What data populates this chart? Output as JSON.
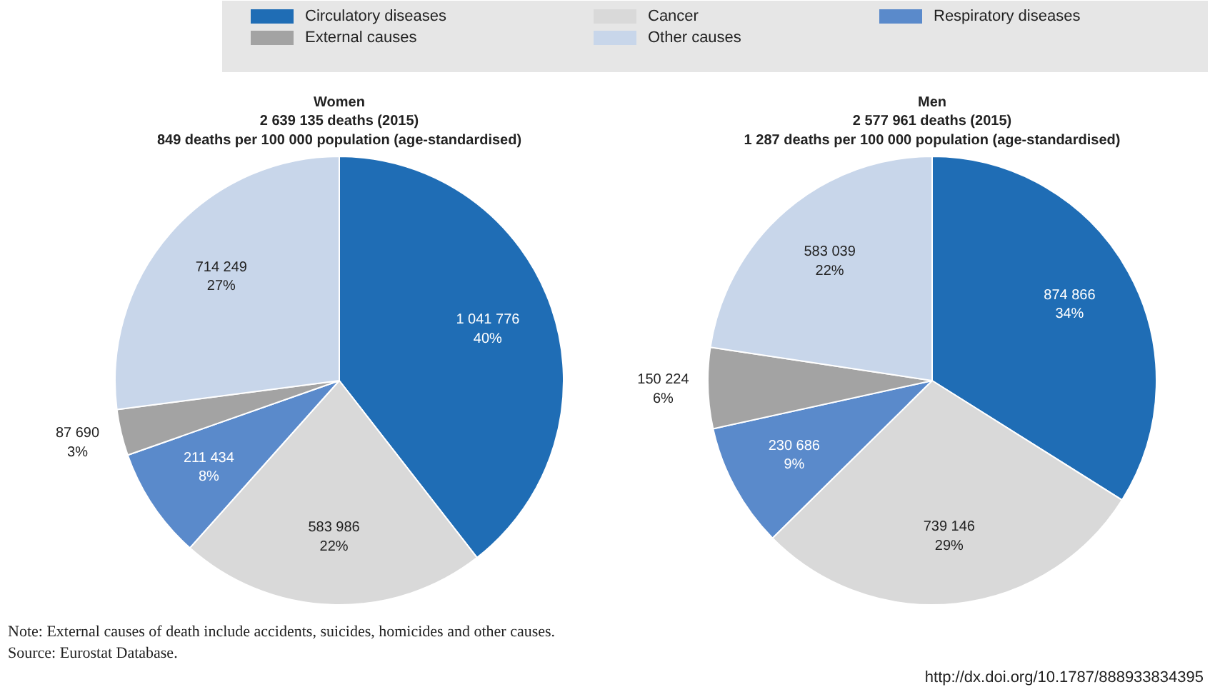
{
  "chart_data": [
    {
      "type": "pie",
      "title": "Women",
      "subtitle": "2 639 135 deaths (2015)\n849 deaths per 100 000 population (age-standardised)",
      "categories": [
        "Circulatory diseases",
        "Cancer",
        "Respiratory diseases",
        "External causes",
        "Other causes"
      ],
      "values": [
        1041776,
        583986,
        211434,
        87690,
        714249
      ],
      "value_labels": [
        "1 041 776\n40%",
        "583 986\n22%",
        "211 434\n8%",
        "87 690\n3%",
        "714 249\n27%"
      ],
      "colors": [
        "#1f6db5",
        "#d9d9d9",
        "#5a8acb",
        "#a3a3a3",
        "#c8d6ea"
      ],
      "legend": "top",
      "annotations": [
        "Note:  External causes of death include accidents, suicides, homicides and other causes.",
        "Source:  Eurostat Database.",
        "http://dx.doi.org/10.1787/888933834395"
      ]
    },
    {
      "type": "pie",
      "title": "Men",
      "subtitle": "2 577 961 deaths (2015)\n1 287 deaths per 100 000 population (age-standardised)",
      "categories": [
        null,
        null,
        null,
        null,
        null
      ],
      "values": [
        874866,
        739146,
        230686,
        150224,
        583039
      ],
      "value_labels": [
        "874 866\n34%",
        "739 146\n29%",
        "230 686\n9%",
        "150 224\n6%",
        "583 039\n22%"
      ],
      "colors": [
        "#1f6db5",
        "#d9d9d9",
        "#5a8acb",
        "#a3a3a3",
        "#c8d6ea"
      ]
    }
  ]
}
